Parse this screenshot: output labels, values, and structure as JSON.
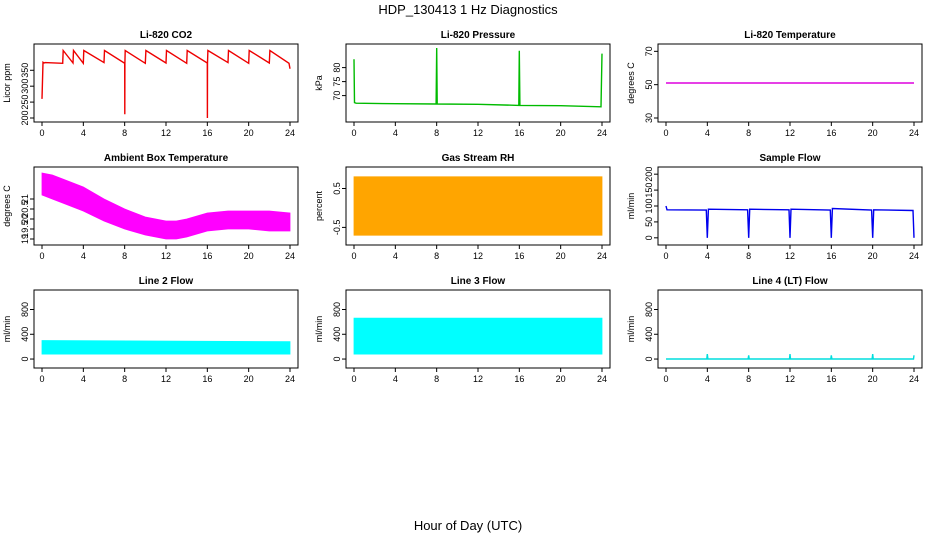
{
  "title": "HDP_130413  1 Hz Diagnostics",
  "xlabel": "Hour of Day (UTC)",
  "chart_data": [
    {
      "type": "line",
      "title": "Li-820 CO2",
      "xlabel": "",
      "ylabel": "Licor ppm",
      "color": "#ee0000",
      "xlim": [
        0,
        24
      ],
      "xticks": [
        0,
        4,
        8,
        12,
        16,
        20,
        24
      ],
      "ylim": [
        200,
        420
      ],
      "yticks": [
        200,
        250,
        300,
        350
      ],
      "x": [
        0,
        0.1,
        0.2,
        0.3,
        2,
        2.05,
        3,
        3.05,
        4,
        4.05,
        6,
        6.05,
        8,
        8.01,
        8.02,
        8.05,
        10,
        10.05,
        12,
        12.05,
        14,
        14.05,
        16,
        16.01,
        16.02,
        16.05,
        18,
        18.05,
        20,
        20.05,
        22,
        22.05,
        23.9,
        24
      ],
      "y": [
        260,
        375,
        373,
        374,
        372,
        412,
        373,
        412,
        372,
        412,
        374,
        412,
        372,
        212,
        373,
        412,
        372,
        412,
        373,
        412,
        372,
        412,
        373,
        200,
        373,
        412,
        374,
        412,
        372,
        412,
        373,
        412,
        372,
        355
      ]
    },
    {
      "type": "line",
      "title": "Li-820 Pressure",
      "xlabel": "",
      "ylabel": "kPa",
      "color": "#00bb00",
      "xlim": [
        0,
        24
      ],
      "xticks": [
        0,
        4,
        8,
        12,
        16,
        20,
        24
      ],
      "ylim": [
        62,
        87
      ],
      "yticks": [
        70,
        75,
        80
      ],
      "x": [
        0,
        0.05,
        0.2,
        4,
        7.95,
        8,
        8.05,
        12,
        15.95,
        16,
        16.05,
        20,
        23.9,
        24
      ],
      "y": [
        83,
        67.5,
        67.3,
        67.1,
        67.0,
        87,
        67.0,
        66.9,
        66.5,
        86,
        66.5,
        66.4,
        66.0,
        85
      ]
    },
    {
      "type": "line",
      "title": "Li-820 Temperature",
      "xlabel": "",
      "ylabel": "degrees C",
      "color": "#dd00dd",
      "xlim": [
        0,
        24
      ],
      "xticks": [
        0,
        4,
        8,
        12,
        16,
        20,
        24
      ],
      "ylim": [
        30,
        72
      ],
      "yticks": [
        30,
        50,
        70
      ],
      "x": [
        0,
        24
      ],
      "y": [
        51,
        51
      ]
    },
    {
      "type": "area",
      "title": "Ambient Box Temperature",
      "xlabel": "",
      "ylabel": "degrees C",
      "color": "#ff00ff",
      "xlim": [
        0,
        24
      ],
      "xticks": [
        0,
        4,
        8,
        12,
        16,
        20,
        24
      ],
      "ylim": [
        18.9,
        22.4
      ],
      "yticks": [
        19.0,
        19.5,
        20.0,
        20.5,
        21.0
      ],
      "x": [
        0,
        1,
        2,
        4,
        6,
        8,
        10,
        12,
        13,
        14,
        16,
        18,
        20,
        22,
        24
      ],
      "y_low": [
        21.2,
        21.0,
        20.8,
        20.4,
        19.9,
        19.5,
        19.2,
        19.0,
        19.0,
        19.1,
        19.4,
        19.5,
        19.5,
        19.4,
        19.4
      ],
      "y_high": [
        22.3,
        22.2,
        22.0,
        21.6,
        21.0,
        20.5,
        20.1,
        19.9,
        19.9,
        20.0,
        20.3,
        20.4,
        20.4,
        20.4,
        20.3
      ]
    },
    {
      "type": "area",
      "title": "Gas Stream RH",
      "xlabel": "",
      "ylabel": "percent",
      "color": "#ffa500",
      "xlim": [
        0,
        24
      ],
      "xticks": [
        0,
        4,
        8,
        12,
        16,
        20,
        24
      ],
      "ylim": [
        -0.85,
        0.95
      ],
      "yticks": [
        -0.5,
        0.5
      ],
      "x": [
        0,
        24
      ],
      "y_low": [
        -0.7,
        -0.7
      ],
      "y_high": [
        0.8,
        0.8
      ]
    },
    {
      "type": "line",
      "title": "Sample Flow",
      "xlabel": "",
      "ylabel": "ml/min",
      "color": "#0000ee",
      "xlim": [
        0,
        24
      ],
      "xticks": [
        0,
        4,
        8,
        12,
        16,
        20,
        24
      ],
      "ylim": [
        -10,
        210
      ],
      "yticks": [
        0,
        50,
        100,
        150,
        200
      ],
      "x": [
        0,
        0.1,
        3.9,
        4,
        4.1,
        7.9,
        8,
        8.1,
        11.9,
        12,
        12.1,
        15.9,
        16,
        16.1,
        19.9,
        20,
        20.1,
        23.9,
        24
      ],
      "y": [
        100,
        88,
        87,
        0,
        90,
        88,
        0,
        90,
        88,
        0,
        90,
        87,
        0,
        92,
        87,
        0,
        88,
        86,
        0
      ]
    },
    {
      "type": "area",
      "title": "Line 2 Flow",
      "xlabel": "",
      "ylabel": "ml/min",
      "color": "#00ffff",
      "xlim": [
        0,
        24
      ],
      "xticks": [
        0,
        4,
        8,
        12,
        16,
        20,
        24
      ],
      "ylim": [
        -80,
        1050
      ],
      "yticks": [
        0,
        400,
        800
      ],
      "x": [
        0,
        24
      ],
      "y_low": [
        80,
        80
      ],
      "y_high": [
        300,
        280
      ]
    },
    {
      "type": "area",
      "title": "Line 3 Flow",
      "xlabel": "",
      "ylabel": "ml/min",
      "color": "#00ffff",
      "xlim": [
        0,
        24
      ],
      "xticks": [
        0,
        4,
        8,
        12,
        16,
        20,
        24
      ],
      "ylim": [
        -80,
        1050
      ],
      "yticks": [
        0,
        400,
        800
      ],
      "x": [
        0,
        24
      ],
      "y_low": [
        80,
        80
      ],
      "y_high": [
        660,
        660
      ]
    },
    {
      "type": "line",
      "title": "Line 4 (LT) Flow",
      "xlabel": "",
      "ylabel": "ml/min",
      "color": "#00dddd",
      "xlim": [
        0,
        24
      ],
      "xticks": [
        0,
        4,
        8,
        12,
        16,
        20,
        24
      ],
      "ylim": [
        -80,
        1050
      ],
      "yticks": [
        0,
        400,
        800
      ],
      "x": [
        0,
        3.95,
        4,
        4.05,
        7.95,
        8,
        8.05,
        11.95,
        12,
        12.05,
        15.95,
        16,
        16.05,
        19.95,
        20,
        20.05,
        23.95,
        24
      ],
      "y": [
        0,
        0,
        80,
        0,
        0,
        60,
        0,
        0,
        80,
        0,
        0,
        60,
        0,
        0,
        80,
        0,
        0,
        60
      ]
    }
  ]
}
